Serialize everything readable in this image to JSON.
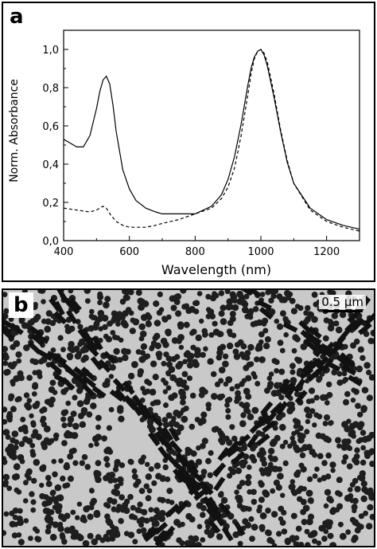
{
  "panels": {
    "a": {
      "letter": "a"
    },
    "b": {
      "letter": "b",
      "scale_bar_label": "0.5 µm"
    }
  },
  "chart_data": {
    "type": "line",
    "title": "",
    "xlabel": "Wavelength (nm)",
    "ylabel": "Norm. Absorbance",
    "xlim": [
      400,
      1300
    ],
    "ylim": [
      0,
      1.1
    ],
    "x_ticks": [
      400,
      600,
      800,
      1000,
      1200
    ],
    "x_tick_labels": [
      "400",
      "600",
      "800",
      "1000",
      "1200"
    ],
    "y_ticks": [
      0,
      0.2,
      0.4,
      0.6,
      0.8,
      1.0
    ],
    "y_tick_labels": [
      "0,0",
      "0,2",
      "0,4",
      "0,6",
      "0,8",
      "1,0"
    ],
    "grid": false,
    "legend": "none",
    "series": [
      {
        "style": "solid",
        "x": [
          400,
          420,
          440,
          460,
          480,
          500,
          510,
          520,
          530,
          540,
          550,
          560,
          580,
          600,
          620,
          650,
          680,
          700,
          750,
          800,
          850,
          880,
          900,
          920,
          940,
          960,
          970,
          980,
          990,
          1000,
          1010,
          1020,
          1040,
          1060,
          1080,
          1100,
          1150,
          1200,
          1250,
          1300
        ],
        "y": [
          0.53,
          0.51,
          0.49,
          0.49,
          0.55,
          0.69,
          0.78,
          0.84,
          0.86,
          0.82,
          0.71,
          0.57,
          0.37,
          0.27,
          0.21,
          0.17,
          0.15,
          0.14,
          0.14,
          0.14,
          0.18,
          0.24,
          0.32,
          0.44,
          0.61,
          0.81,
          0.9,
          0.96,
          0.99,
          1.0,
          0.97,
          0.91,
          0.75,
          0.57,
          0.41,
          0.3,
          0.17,
          0.11,
          0.08,
          0.06
        ]
      },
      {
        "style": "dashed",
        "x": [
          400,
          440,
          480,
          500,
          510,
          520,
          530,
          545,
          560,
          580,
          600,
          620,
          650,
          680,
          700,
          750,
          800,
          850,
          880,
          900,
          920,
          940,
          960,
          970,
          980,
          990,
          1000,
          1010,
          1020,
          1040,
          1060,
          1080,
          1100,
          1150,
          1200,
          1250,
          1300
        ],
        "y": [
          0.17,
          0.16,
          0.15,
          0.16,
          0.17,
          0.18,
          0.17,
          0.13,
          0.1,
          0.08,
          0.07,
          0.07,
          0.07,
          0.08,
          0.09,
          0.11,
          0.14,
          0.17,
          0.22,
          0.28,
          0.38,
          0.55,
          0.76,
          0.87,
          0.95,
          0.99,
          1.0,
          0.98,
          0.93,
          0.77,
          0.58,
          0.42,
          0.3,
          0.16,
          0.1,
          0.07,
          0.05
        ]
      }
    ]
  },
  "tem_image": {
    "background": "#c9c9c9",
    "particle_color": "#1e1e1e"
  }
}
